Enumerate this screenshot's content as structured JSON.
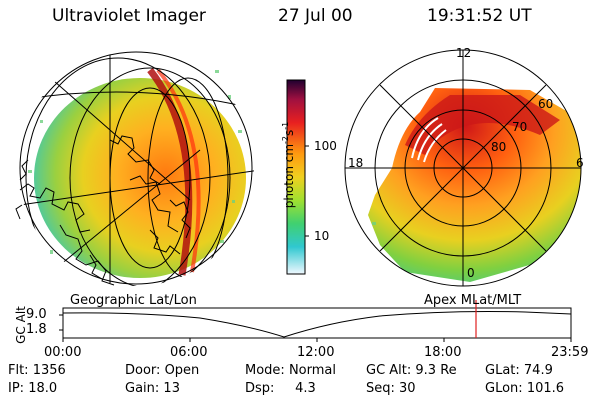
{
  "header": {
    "instrument": "Ultraviolet Imager",
    "date": "27 Jul 00",
    "time": "19:31:52 UT"
  },
  "colorbar": {
    "label": "photon cm",
    "label_sup1": "-2",
    "label_mid": "s",
    "label_sup2": "-1",
    "ticks": [
      "100",
      "10"
    ],
    "scale": "log"
  },
  "left_map": {
    "projection_label": "Geographic Lat/Lon"
  },
  "right_map": {
    "projection_label": "Apex MLat/MLT",
    "mlt_labels": [
      "12",
      "18",
      "6",
      "0"
    ],
    "mlat_labels": [
      "60",
      "70",
      "80"
    ]
  },
  "orbit_plot": {
    "ylabel": "GC Alt",
    "yticks": [
      "9.0",
      "1.8"
    ],
    "xticks": [
      "00:00",
      "06:00",
      "12:00",
      "18:00",
      "23:59"
    ],
    "current_time_marker": "19:31:52"
  },
  "status": {
    "flt_label": "Flt:",
    "flt": "1356",
    "ip_label": "IP:",
    "ip": "18.0",
    "door_label": "Door:",
    "door": "Open",
    "gain_label": "Gain:",
    "gain": "13",
    "mode_label": "Mode:",
    "mode": "Normal",
    "dsp_label": "Dsp:",
    "dsp": "4.3",
    "gcalt_label": "GC Alt:",
    "gcalt": "9.3 Re",
    "seq_label": "Seq:",
    "seq": "30",
    "glat_label": "GLat:",
    "glat": "74.9",
    "glon_label": "GLon:",
    "glon": "101.6"
  },
  "colors": {
    "marker": "#e02020",
    "background": "#ffffff"
  }
}
